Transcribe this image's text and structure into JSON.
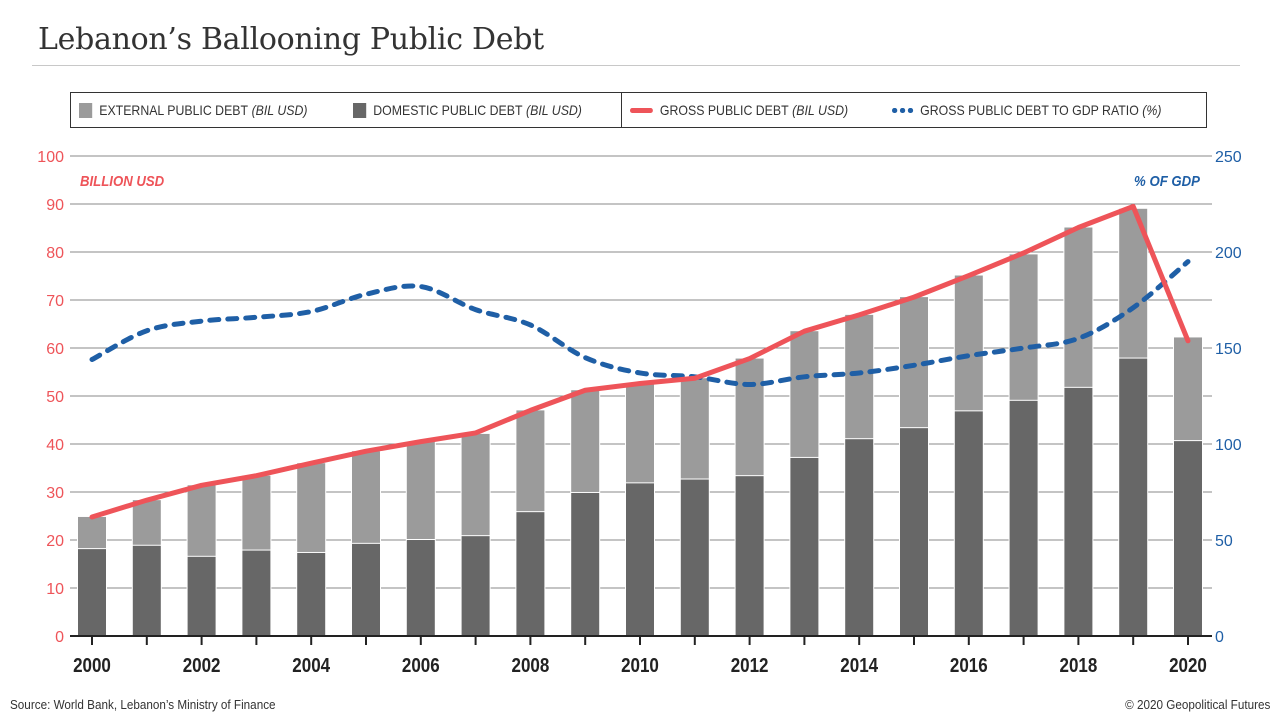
{
  "title": "Lebanon’s Ballooning Public Debt",
  "legend": {
    "external": {
      "label": "EXTERNAL PUBLIC DEBT",
      "unit": "(BIL USD)"
    },
    "domestic": {
      "label": "DOMESTIC PUBLIC DEBT",
      "unit": "(BIL USD)"
    },
    "gross": {
      "label": "GROSS PUBLIC DEBT",
      "unit": "(BIL USD)"
    },
    "ratio": {
      "label": "GROSS PUBLIC DEBT TO GDP RATIO",
      "unit": "(%)"
    }
  },
  "footer": {
    "source": "Source: World Bank, Lebanon’s Ministry of Finance",
    "copyright": "© 2020 Geopolitical Futures"
  },
  "colors": {
    "external": "#9b9b9b",
    "domestic": "#676767",
    "gross": "#ee5459",
    "ratio": "#1f5fa6",
    "left_axis": "#ee5459",
    "right_axis": "#1f5fa6",
    "grid": "#8a8a8a"
  },
  "chart_data": {
    "type": "bar",
    "title": "Lebanon’s Ballooning Public Debt",
    "categories": [
      "2000",
      "2001",
      "2002",
      "2003",
      "2004",
      "2005",
      "2006",
      "2007",
      "2008",
      "2009",
      "2010",
      "2011",
      "2012",
      "2013",
      "2014",
      "2015",
      "2016",
      "2017",
      "2018",
      "2019",
      "2020"
    ],
    "x_tick_labels": [
      "2000",
      "2002",
      "2004",
      "2006",
      "2008",
      "2010",
      "2012",
      "2014",
      "2016",
      "2018",
      "2020"
    ],
    "ylabel": "BILLION USD",
    "ylabel_right": "% OF GDP",
    "ylim": [
      0,
      100
    ],
    "ylim_right": [
      0,
      250
    ],
    "y_ticks": [
      0,
      10,
      20,
      30,
      40,
      50,
      60,
      70,
      80,
      90,
      100
    ],
    "y_ticks_right": [
      0,
      50,
      100,
      150,
      200,
      250
    ],
    "grid": true,
    "legend_position": "top",
    "series": [
      {
        "name": "DOMESTIC PUBLIC DEBT (BIL USD)",
        "kind": "stacked-bar",
        "axis": "left",
        "values": [
          18.1,
          18.8,
          16.5,
          17.8,
          17.3,
          19.2,
          20.0,
          20.8,
          25.8,
          29.8,
          31.8,
          32.6,
          33.3,
          37.1,
          41.0,
          43.3,
          46.8,
          49.0,
          51.7,
          57.8,
          40.6
        ]
      },
      {
        "name": "EXTERNAL PUBLIC DEBT (BIL USD)",
        "kind": "stacked-bar",
        "axis": "left",
        "values": [
          6.7,
          9.5,
          14.9,
          15.6,
          18.7,
          19.3,
          20.5,
          21.3,
          21.2,
          21.4,
          20.8,
          21.1,
          24.5,
          26.4,
          25.9,
          27.3,
          28.3,
          30.5,
          33.4,
          31.2,
          21.6
        ]
      },
      {
        "name": "GROSS PUBLIC DEBT (BIL USD)",
        "kind": "line",
        "axis": "left",
        "values": [
          24.8,
          28.3,
          31.4,
          33.4,
          36.0,
          38.5,
          40.5,
          42.3,
          47.0,
          51.2,
          52.6,
          53.7,
          57.8,
          63.5,
          66.9,
          70.6,
          75.1,
          79.8,
          85.1,
          89.5,
          61.5
        ]
      },
      {
        "name": "GROSS PUBLIC DEBT TO GDP RATIO (%)",
        "kind": "dashed-line",
        "axis": "right",
        "values": [
          144,
          159,
          164,
          166,
          169,
          178,
          182,
          170,
          162,
          145,
          137,
          135,
          131,
          135,
          137,
          141,
          146,
          150,
          155,
          171,
          195
        ]
      }
    ]
  }
}
